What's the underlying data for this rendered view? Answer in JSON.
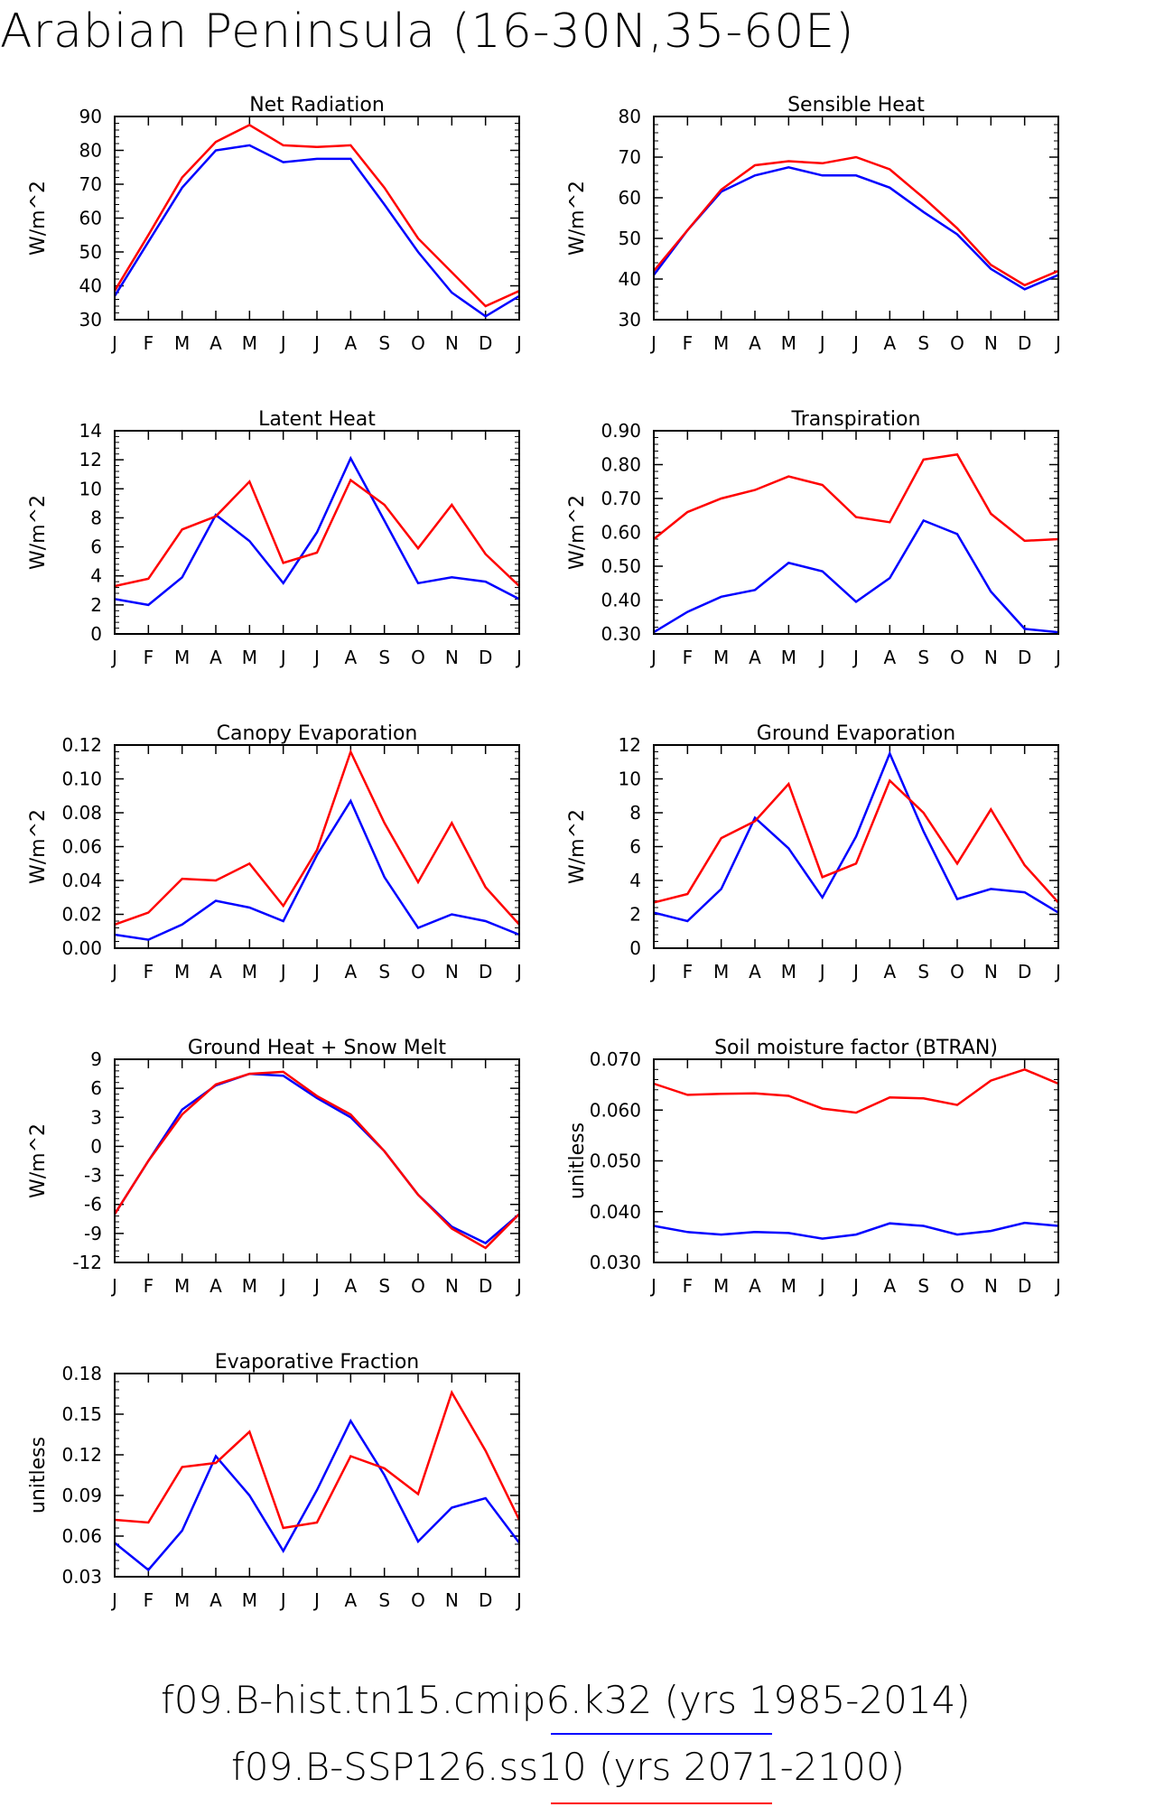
{
  "title": "Arabian Peninsula (16-30N,35-60E)",
  "legend": [
    {
      "label": "f09.B-hist.tn15.cmip6.k32 (yrs 1985-2014)",
      "color": "#0000ff"
    },
    {
      "label": "f09.B-SSP126.ss10 (yrs 2071-2100)",
      "color": "#ff0000"
    }
  ],
  "chart_data": [
    {
      "type": "line",
      "title": "Net Radiation",
      "ylabel": "W/m^2",
      "categories": [
        "J",
        "F",
        "M",
        "A",
        "M",
        "J",
        "J",
        "A",
        "S",
        "O",
        "N",
        "D",
        "J"
      ],
      "ylim": [
        30,
        90
      ],
      "yticks": [
        "30",
        "40",
        "50",
        "60",
        "70",
        "80",
        "90"
      ],
      "series": [
        {
          "color": "#0000ff",
          "values": [
            37,
            53,
            69,
            80,
            81.5,
            76.5,
            77.5,
            77.5,
            64,
            50,
            38,
            31,
            37
          ]
        },
        {
          "color": "#ff0000",
          "values": [
            38.5,
            55,
            72,
            82.5,
            87.5,
            81.5,
            81,
            81.5,
            69,
            54,
            44,
            34,
            38.5
          ]
        }
      ]
    },
    {
      "type": "line",
      "title": "Sensible Heat",
      "ylabel": "W/m^2",
      "categories": [
        "J",
        "F",
        "M",
        "A",
        "M",
        "J",
        "J",
        "A",
        "S",
        "O",
        "N",
        "D",
        "J"
      ],
      "ylim": [
        30,
        80
      ],
      "yticks": [
        "30",
        "40",
        "50",
        "60",
        "70",
        "80"
      ],
      "series": [
        {
          "color": "#0000ff",
          "values": [
            41,
            52,
            61.5,
            65.5,
            67.5,
            65.5,
            65.5,
            62.5,
            56.5,
            51,
            42.5,
            37.5,
            41
          ]
        },
        {
          "color": "#ff0000",
          "values": [
            42,
            52,
            62,
            68,
            69,
            68.5,
            70,
            67,
            60,
            52.5,
            43.5,
            38.5,
            42
          ]
        }
      ]
    },
    {
      "type": "line",
      "title": "Latent Heat",
      "ylabel": "W/m^2",
      "categories": [
        "J",
        "F",
        "M",
        "A",
        "M",
        "J",
        "J",
        "A",
        "S",
        "O",
        "N",
        "D",
        "J"
      ],
      "ylim": [
        0,
        14
      ],
      "yticks": [
        "0",
        "2",
        "4",
        "6",
        "8",
        "10",
        "12",
        "14"
      ],
      "series": [
        {
          "color": "#0000ff",
          "values": [
            2.4,
            2.0,
            3.9,
            8.2,
            6.4,
            3.5,
            7.0,
            12.1,
            7.8,
            3.5,
            3.9,
            3.6,
            2.4
          ]
        },
        {
          "color": "#ff0000",
          "values": [
            3.3,
            3.8,
            7.2,
            8.1,
            10.5,
            4.9,
            5.6,
            10.6,
            8.9,
            5.9,
            8.9,
            5.5,
            3.3
          ]
        }
      ]
    },
    {
      "type": "line",
      "title": "Transpiration",
      "ylabel": "W/m^2",
      "categories": [
        "J",
        "F",
        "M",
        "A",
        "M",
        "J",
        "J",
        "A",
        "S",
        "O",
        "N",
        "D",
        "J"
      ],
      "ylim": [
        0.3,
        0.9
      ],
      "yticks": [
        "0.30",
        "0.40",
        "0.50",
        "0.60",
        "0.70",
        "0.80",
        "0.90"
      ],
      "series": [
        {
          "color": "#0000ff",
          "values": [
            0.305,
            0.365,
            0.41,
            0.43,
            0.51,
            0.485,
            0.395,
            0.465,
            0.635,
            0.595,
            0.425,
            0.315,
            0.305
          ]
        },
        {
          "color": "#ff0000",
          "values": [
            0.58,
            0.66,
            0.7,
            0.725,
            0.765,
            0.74,
            0.645,
            0.63,
            0.815,
            0.83,
            0.655,
            0.575,
            0.58
          ]
        }
      ]
    },
    {
      "type": "line",
      "title": "Canopy Evaporation",
      "ylabel": "W/m^2",
      "categories": [
        "J",
        "F",
        "M",
        "A",
        "M",
        "J",
        "J",
        "A",
        "S",
        "O",
        "N",
        "D",
        "J"
      ],
      "ylim": [
        0.0,
        0.12
      ],
      "yticks": [
        "0.00",
        "0.02",
        "0.04",
        "0.06",
        "0.08",
        "0.10",
        "0.12"
      ],
      "series": [
        {
          "color": "#0000ff",
          "values": [
            0.008,
            0.005,
            0.014,
            0.028,
            0.024,
            0.016,
            0.055,
            0.087,
            0.042,
            0.012,
            0.02,
            0.016,
            0.008
          ]
        },
        {
          "color": "#ff0000",
          "values": [
            0.014,
            0.021,
            0.041,
            0.04,
            0.05,
            0.025,
            0.058,
            0.116,
            0.074,
            0.039,
            0.074,
            0.036,
            0.014
          ]
        }
      ]
    },
    {
      "type": "line",
      "title": "Ground Evaporation",
      "ylabel": "W/m^2",
      "categories": [
        "J",
        "F",
        "M",
        "A",
        "M",
        "J",
        "J",
        "A",
        "S",
        "O",
        "N",
        "D",
        "J"
      ],
      "ylim": [
        0,
        12
      ],
      "yticks": [
        "0",
        "2",
        "4",
        "6",
        "8",
        "10",
        "12"
      ],
      "series": [
        {
          "color": "#0000ff",
          "values": [
            2.1,
            1.6,
            3.5,
            7.7,
            5.9,
            3.0,
            6.6,
            11.5,
            6.9,
            2.9,
            3.5,
            3.3,
            2.1
          ]
        },
        {
          "color": "#ff0000",
          "values": [
            2.7,
            3.2,
            6.5,
            7.5,
            9.7,
            4.2,
            5.0,
            9.9,
            8.0,
            5.0,
            8.2,
            4.9,
            2.7
          ]
        }
      ]
    },
    {
      "type": "line",
      "title": "Ground Heat + Snow Melt",
      "ylabel": "W/m^2",
      "categories": [
        "J",
        "F",
        "M",
        "A",
        "M",
        "J",
        "J",
        "A",
        "S",
        "O",
        "N",
        "D",
        "J"
      ],
      "ylim": [
        -12,
        9
      ],
      "yticks": [
        "-12",
        "-9",
        "-6",
        "-3",
        "0",
        "3",
        "6",
        "9"
      ],
      "series": [
        {
          "color": "#0000ff",
          "values": [
            -7,
            -1.5,
            3.8,
            6.3,
            7.5,
            7.3,
            5.0,
            3.0,
            -0.5,
            -5.0,
            -8.3,
            -10.0,
            -7.0
          ]
        },
        {
          "color": "#ff0000",
          "values": [
            -7,
            -1.5,
            3.3,
            6.4,
            7.5,
            7.7,
            5.2,
            3.3,
            -0.5,
            -5.0,
            -8.5,
            -10.5,
            -7.0
          ]
        }
      ]
    },
    {
      "type": "line",
      "title": "Soil moisture factor (BTRAN)",
      "ylabel": "unitless",
      "categories": [
        "J",
        "F",
        "M",
        "A",
        "M",
        "J",
        "J",
        "A",
        "S",
        "O",
        "N",
        "D",
        "J"
      ],
      "ylim": [
        0.03,
        0.07
      ],
      "yticks": [
        "0.030",
        "0.040",
        "0.050",
        "0.060",
        "0.070"
      ],
      "series": [
        {
          "color": "#0000ff",
          "values": [
            0.0372,
            0.036,
            0.0355,
            0.036,
            0.0358,
            0.0347,
            0.0355,
            0.0377,
            0.0372,
            0.0355,
            0.0362,
            0.0378,
            0.0372
          ]
        },
        {
          "color": "#ff0000",
          "values": [
            0.0652,
            0.063,
            0.0632,
            0.0633,
            0.0628,
            0.0603,
            0.0595,
            0.0625,
            0.0623,
            0.061,
            0.0658,
            0.068,
            0.0652
          ]
        }
      ]
    },
    {
      "type": "line",
      "title": "Evaporative Fraction",
      "ylabel": "unitless",
      "categories": [
        "J",
        "F",
        "M",
        "A",
        "M",
        "J",
        "J",
        "A",
        "S",
        "O",
        "N",
        "D",
        "J"
      ],
      "ylim": [
        0.03,
        0.18
      ],
      "yticks": [
        "0.03",
        "0.06",
        "0.09",
        "0.12",
        "0.15",
        "0.18"
      ],
      "series": [
        {
          "color": "#0000ff",
          "values": [
            0.055,
            0.035,
            0.064,
            0.119,
            0.09,
            0.049,
            0.094,
            0.145,
            0.105,
            0.056,
            0.081,
            0.088,
            0.055
          ]
        },
        {
          "color": "#ff0000",
          "values": [
            0.072,
            0.07,
            0.111,
            0.114,
            0.137,
            0.066,
            0.07,
            0.119,
            0.11,
            0.091,
            0.166,
            0.123,
            0.072
          ]
        }
      ]
    }
  ]
}
